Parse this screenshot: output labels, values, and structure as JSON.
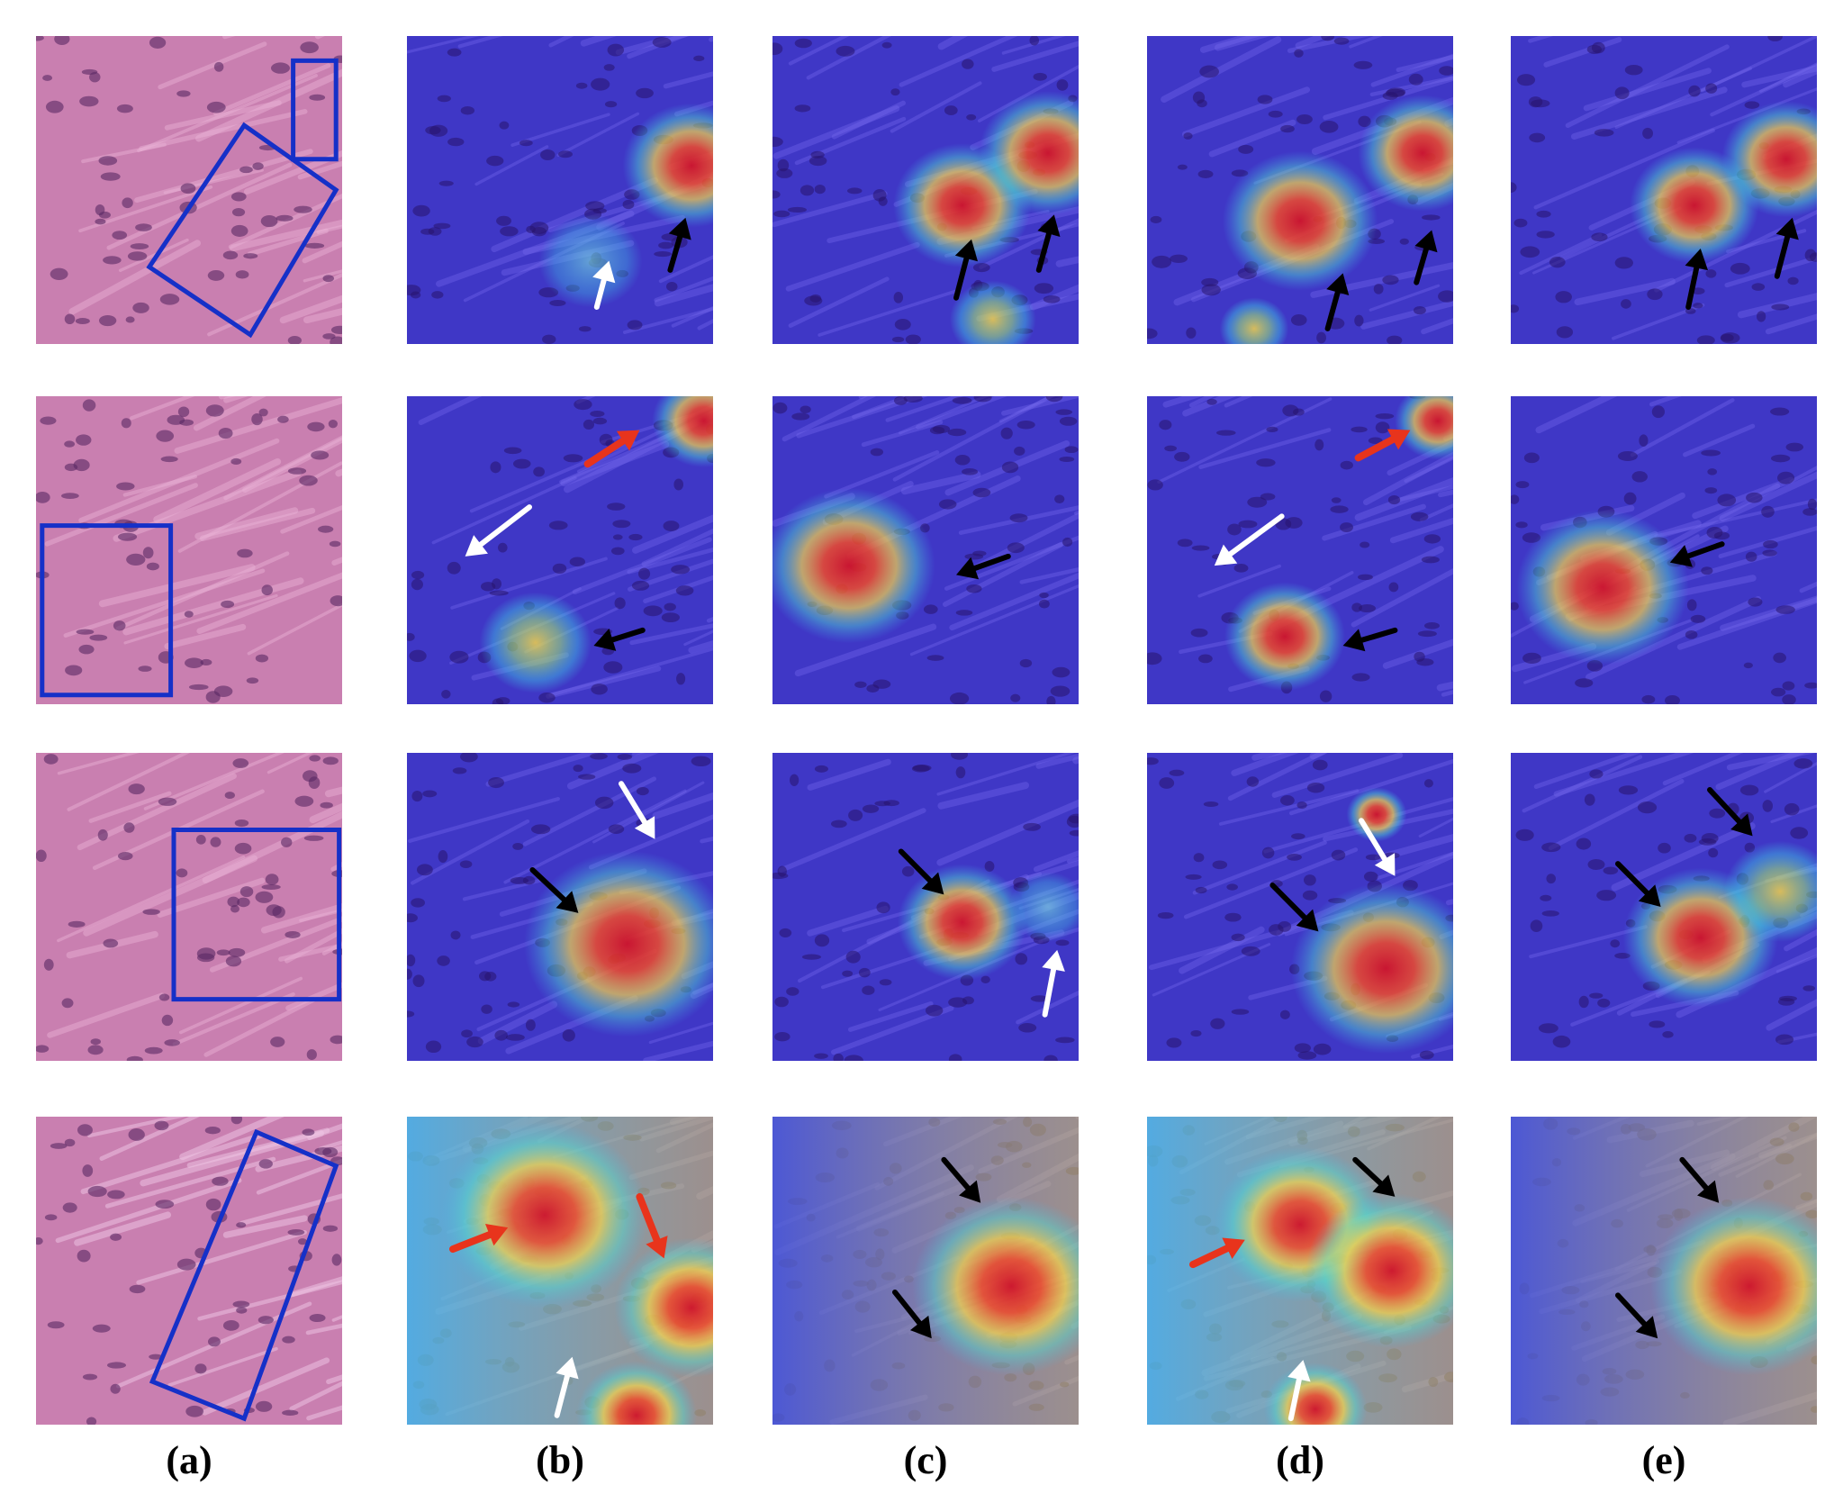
{
  "figure": {
    "column_labels": [
      "(a)",
      "(b)",
      "(c)",
      "(d)",
      "(e)"
    ],
    "rows": 4,
    "colors": {
      "he_base": "#c97fb0",
      "heat_base": "#3f37c6",
      "box": "#1530c8",
      "arrow_black": "#000000",
      "arrow_white": "#ffffff",
      "arrow_red": "#e8341c"
    },
    "panel_kinds": [
      "he-stained-tissue-patch",
      "heatmap-overlay",
      "heatmap-overlay",
      "heatmap-overlay",
      "heatmap-overlay"
    ],
    "icons": [
      "box-annotation-icon",
      "black-arrow-icon",
      "white-arrow-icon",
      "red-arrow-icon"
    ]
  }
}
